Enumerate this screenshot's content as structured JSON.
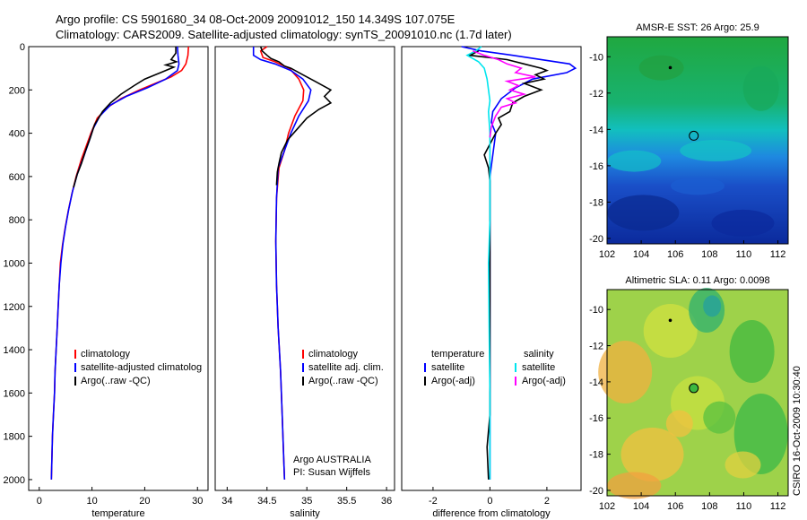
{
  "header": {
    "line1": "Argo profile: CS 5901680_34 08-Oct-2009 20091012_150 14.349S 107.075E",
    "line2": "Climatology: CARS2009. Satellite-adjusted climatology: synTS_20091010.nc (1.7d later)"
  },
  "side_text": "CSIRO 16-Oct-2009 10:30:40",
  "colors": {
    "red": "#ff0000",
    "blue": "#0000ff",
    "black": "#000000",
    "cyan": "#00e5ee",
    "magenta": "#ff00ff"
  },
  "chart_data": [
    {
      "type": "line",
      "id": "temperature",
      "xlabel": "temperature",
      "xlim": [
        -2,
        32
      ],
      "ylim": [
        0,
        2050
      ],
      "y_inverted": true,
      "xticks": [
        0,
        10,
        20,
        30
      ],
      "yticks": [
        0,
        200,
        400,
        600,
        800,
        1000,
        1200,
        1400,
        1600,
        1800,
        2000
      ],
      "legend": [
        "climatology",
        "satellite-adjusted climatolog",
        "Argo(..raw -QC)"
      ],
      "series": [
        {
          "name": "climatology",
          "color": "red",
          "points": [
            [
              28.3,
              0
            ],
            [
              28.2,
              40
            ],
            [
              27.8,
              80
            ],
            [
              27,
              110
            ],
            [
              25,
              140
            ],
            [
              22,
              170
            ],
            [
              19,
              200
            ],
            [
              15.5,
              240
            ],
            [
              13,
              280
            ],
            [
              11,
              330
            ],
            [
              9.8,
              400
            ],
            [
              8.9,
              460
            ],
            [
              8,
              520
            ],
            [
              7,
              600
            ],
            [
              6.2,
              680
            ],
            [
              5.5,
              760
            ],
            [
              4.9,
              840
            ],
            [
              4.4,
              920
            ],
            [
              4,
              1000
            ],
            [
              3.8,
              1100
            ],
            [
              3.6,
              1200
            ],
            [
              3.4,
              1300
            ],
            [
              3.2,
              1400
            ],
            [
              3,
              1500
            ],
            [
              2.9,
              1600
            ],
            [
              2.7,
              1700
            ],
            [
              2.5,
              1800
            ],
            [
              2.4,
              1900
            ],
            [
              2.3,
              2000
            ]
          ]
        },
        {
          "name": "satellite-adjusted climatolog",
          "color": "blue",
          "points": [
            [
              26.2,
              0
            ],
            [
              26.3,
              40
            ],
            [
              26.5,
              80
            ],
            [
              26.2,
              110
            ],
            [
              24,
              150
            ],
            [
              20.5,
              190
            ],
            [
              16.5,
              230
            ],
            [
              13.5,
              270
            ],
            [
              11.5,
              320
            ],
            [
              10.2,
              380
            ],
            [
              9.4,
              440
            ],
            [
              8.4,
              510
            ],
            [
              7.2,
              590
            ],
            [
              6.3,
              670
            ],
            [
              5.6,
              750
            ],
            [
              5,
              830
            ],
            [
              4.5,
              910
            ],
            [
              4.1,
              1000
            ],
            [
              3.8,
              1100
            ],
            [
              3.6,
              1200
            ],
            [
              3.4,
              1300
            ],
            [
              3.2,
              1400
            ],
            [
              3,
              1500
            ],
            [
              2.9,
              1600
            ],
            [
              2.7,
              1700
            ],
            [
              2.5,
              1800
            ],
            [
              2.4,
              1900
            ],
            [
              2.3,
              2000
            ]
          ]
        },
        {
          "name": "Argo(..raw -QC)",
          "color": "black",
          "points": [
            [
              25.9,
              0
            ],
            [
              25.9,
              30
            ],
            [
              25,
              60
            ],
            [
              26,
              70
            ],
            [
              24,
              85
            ],
            [
              25.5,
              95
            ],
            [
              23,
              120
            ],
            [
              20,
              150
            ],
            [
              18,
              180
            ],
            [
              15.5,
              220
            ],
            [
              13.5,
              260
            ],
            [
              12,
              300
            ],
            [
              10.5,
              360
            ],
            [
              9.7,
              420
            ],
            [
              8.8,
              480
            ],
            [
              8,
              540
            ],
            [
              7.2,
              590
            ],
            [
              6.5,
              650
            ]
          ]
        }
      ]
    },
    {
      "type": "line",
      "id": "salinity",
      "xlabel": "salinity",
      "xlim": [
        33.85,
        36.1
      ],
      "ylim": [
        0,
        2050
      ],
      "y_inverted": true,
      "xticks": [
        34,
        34.5,
        35,
        35.5,
        36
      ],
      "legend": [
        "climatology",
        "satellite adj. clim.",
        "Argo(..raw -QC)"
      ],
      "annotation": [
        "Argo AUSTRALIA",
        "PI: Susan Wijffels"
      ],
      "series": [
        {
          "name": "climatology",
          "color": "red",
          "points": [
            [
              34.5,
              0
            ],
            [
              34.42,
              20
            ],
            [
              34.45,
              50
            ],
            [
              34.6,
              70
            ],
            [
              34.78,
              100
            ],
            [
              34.9,
              150
            ],
            [
              34.96,
              200
            ],
            [
              34.95,
              250
            ],
            [
              34.85,
              320
            ],
            [
              34.77,
              400
            ],
            [
              34.72,
              480
            ],
            [
              34.65,
              560
            ],
            [
              34.62,
              700
            ],
            [
              34.61,
              900
            ],
            [
              34.62,
              1100
            ],
            [
              34.64,
              1300
            ],
            [
              34.67,
              1500
            ],
            [
              34.69,
              1700
            ],
            [
              34.71,
              1900
            ],
            [
              34.72,
              2000
            ]
          ]
        },
        {
          "name": "satellite adj. clim.",
          "color": "blue",
          "points": [
            [
              34.33,
              0
            ],
            [
              34.33,
              40
            ],
            [
              34.42,
              60
            ],
            [
              34.6,
              80
            ],
            [
              34.8,
              110
            ],
            [
              34.95,
              150
            ],
            [
              35.05,
              200
            ],
            [
              35.02,
              250
            ],
            [
              34.9,
              320
            ],
            [
              34.8,
              400
            ],
            [
              34.72,
              480
            ],
            [
              34.64,
              560
            ],
            [
              34.62,
              700
            ],
            [
              34.61,
              900
            ],
            [
              34.62,
              1100
            ],
            [
              34.64,
              1300
            ],
            [
              34.67,
              1500
            ],
            [
              34.69,
              1700
            ],
            [
              34.71,
              1900
            ],
            [
              34.72,
              2000
            ]
          ]
        },
        {
          "name": "Argo(..raw -QC)",
          "color": "black",
          "points": [
            [
              34.42,
              0
            ],
            [
              34.44,
              20
            ],
            [
              34.5,
              40
            ],
            [
              34.55,
              55
            ],
            [
              34.65,
              70
            ],
            [
              34.72,
              90
            ],
            [
              34.8,
              100
            ],
            [
              34.95,
              130
            ],
            [
              35.1,
              160
            ],
            [
              35.3,
              200
            ],
            [
              35.22,
              230
            ],
            [
              35.3,
              260
            ],
            [
              35.15,
              290
            ],
            [
              35.0,
              330
            ],
            [
              34.88,
              380
            ],
            [
              34.76,
              430
            ],
            [
              34.68,
              490
            ],
            [
              34.65,
              540
            ],
            [
              34.63,
              580
            ],
            [
              34.62,
              640
            ]
          ]
        }
      ]
    },
    {
      "type": "line",
      "id": "difference",
      "xlabel": "difference from climatology",
      "xlim": [
        -3.1,
        3.2
      ],
      "ylim": [
        0,
        2050
      ],
      "y_inverted": true,
      "xticks": [
        -2,
        0,
        2
      ],
      "legend": {
        "headers": [
          "temperature",
          "salinity"
        ],
        "left": [
          "satellite",
          "Argo(-adj)"
        ],
        "right": [
          "satellite",
          "Argo(-adj)"
        ]
      },
      "series": [
        {
          "name": "temperature satellite",
          "color": "blue",
          "points": [
            [
              -1,
              0
            ],
            [
              -0.3,
              20
            ],
            [
              0.8,
              40
            ],
            [
              2.8,
              80
            ],
            [
              3.0,
              100
            ],
            [
              2.7,
              120
            ],
            [
              1.5,
              150
            ],
            [
              0.9,
              190
            ],
            [
              0.4,
              240
            ],
            [
              0.1,
              300
            ],
            [
              0.05,
              350
            ],
            [
              0.2,
              400
            ],
            [
              0.15,
              450
            ],
            [
              0.1,
              500
            ],
            [
              0,
              600
            ],
            [
              0,
              700
            ],
            [
              0,
              800
            ],
            [
              0,
              1000
            ],
            [
              0,
              1500
            ],
            [
              0,
              2000
            ]
          ]
        },
        {
          "name": "temperature Argo(-adj)",
          "color": "black",
          "points": [
            [
              -0.4,
              20
            ],
            [
              -0.7,
              40
            ],
            [
              0.6,
              60
            ],
            [
              1.2,
              80
            ],
            [
              1.8,
              100
            ],
            [
              2,
              110
            ],
            [
              1.6,
              130
            ],
            [
              1.9,
              150
            ],
            [
              1.2,
              170
            ],
            [
              1.8,
              200
            ],
            [
              1.2,
              230
            ],
            [
              0.8,
              260
            ],
            [
              0.7,
              300
            ],
            [
              0.3,
              330
            ],
            [
              0.4,
              360
            ],
            [
              0.2,
              400
            ],
            [
              0,
              450
            ],
            [
              -0.2,
              500
            ],
            [
              -0.05,
              560
            ],
            [
              0,
              620
            ],
            [
              0,
              700
            ],
            [
              0,
              1000
            ],
            [
              0,
              1500
            ],
            [
              0,
              1700
            ],
            [
              -0.1,
              1850
            ],
            [
              -0.05,
              2000
            ]
          ]
        },
        {
          "name": "salinity satellite",
          "color": "cyan",
          "points": [
            [
              -0.3,
              0
            ],
            [
              -0.5,
              20
            ],
            [
              -0.8,
              40
            ],
            [
              -0.4,
              70
            ],
            [
              -0.2,
              100
            ],
            [
              -0.1,
              150
            ],
            [
              -0.05,
              200
            ],
            [
              0,
              250
            ],
            [
              -0.05,
              300
            ],
            [
              0,
              400
            ],
            [
              0,
              600
            ],
            [
              0,
              800
            ],
            [
              -0.05,
              1000
            ],
            [
              -0.03,
              1300
            ],
            [
              0,
              1600
            ],
            [
              0,
              2000
            ]
          ]
        },
        {
          "name": "salinity Argo(-adj)",
          "color": "magenta",
          "points": [
            [
              -0.6,
              20
            ],
            [
              -0.2,
              40
            ],
            [
              0.3,
              60
            ],
            [
              0.6,
              80
            ],
            [
              1.1,
              100
            ],
            [
              0.9,
              120
            ],
            [
              1.6,
              140
            ],
            [
              0.6,
              160
            ],
            [
              1.0,
              180
            ],
            [
              0.7,
              200
            ],
            [
              1.2,
              220
            ],
            [
              0.6,
              240
            ],
            [
              0.9,
              260
            ],
            [
              0.4,
              280
            ],
            [
              0.2,
              320
            ],
            [
              0.05,
              370
            ],
            [
              0,
              420
            ]
          ]
        }
      ]
    },
    {
      "type": "heatmap",
      "id": "sst_map",
      "title": "AMSR-E SST: 26  Argo: 25.9",
      "xlim": [
        102,
        112.6
      ],
      "ylim": [
        -20.3,
        -8.9
      ],
      "xticks": [
        102,
        104,
        106,
        108,
        110,
        112
      ],
      "yticks": [
        -10,
        -12,
        -14,
        -16,
        -18,
        -20
      ],
      "float_position": [
        107.075,
        -14.349
      ],
      "track_dot": [
        105.7,
        -10.6
      ],
      "marker_style": "open circle"
    },
    {
      "type": "heatmap",
      "id": "sla_map",
      "title": "Altimetric SLA: 0.11  Argo: 0.0098",
      "xlim": [
        102,
        112.6
      ],
      "ylim": [
        -20.3,
        -8.9
      ],
      "xticks": [
        102,
        104,
        106,
        108,
        110,
        112
      ],
      "yticks": [
        -10,
        -12,
        -14,
        -16,
        -18,
        -20
      ],
      "float_position": [
        107.075,
        -14.349
      ],
      "track_dot": [
        105.7,
        -10.6
      ],
      "marker_style": "filled circle"
    }
  ]
}
